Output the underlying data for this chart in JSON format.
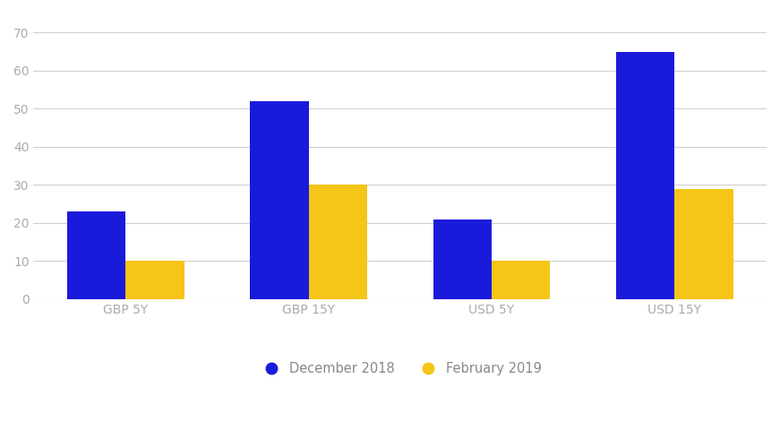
{
  "categories": [
    "GBP 5Y",
    "GBP 15Y",
    "USD 5Y",
    "USD 15Y"
  ],
  "december_2018": [
    23,
    52,
    21,
    65
  ],
  "february_2019": [
    10,
    30,
    10,
    29
  ],
  "dec_color": "#1a1adb",
  "feb_color": "#f5c518",
  "background_color": "#ffffff",
  "grid_color": "#d0d0d0",
  "legend_dec": "December 2018",
  "legend_feb": "February 2019",
  "ylim": [
    0,
    75
  ],
  "yticks": [
    0,
    10,
    20,
    30,
    40,
    50,
    60,
    70
  ],
  "bar_width": 0.32,
  "tick_fontsize": 10,
  "legend_fontsize": 10.5,
  "tick_color": "#aaaaaa",
  "label_color": "#aaaaaa"
}
